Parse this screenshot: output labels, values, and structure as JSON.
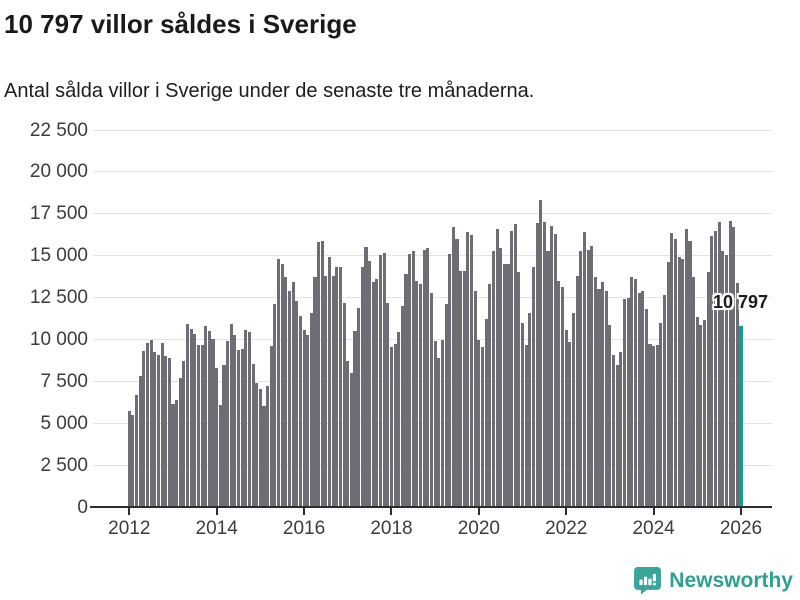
{
  "header": {
    "title": "10 797 villor såldes i Sverige",
    "subtitle": "Antal sålda villor i Sverige under de senaste tre månaderna."
  },
  "annotation": {
    "last_value_label": "10 797"
  },
  "footer": {
    "brand": "Newsworthy"
  },
  "colors": {
    "bar": "#6d6d75",
    "highlight": "#169b8f",
    "grid": "#e3e3e3",
    "axis": "#2e2e2e",
    "tick_text": "#3c3c3c",
    "logo_bg": "#38a79b",
    "brand_text": "#2d9f94"
  },
  "chart_data": {
    "type": "bar",
    "title": "10 797 villor såldes i Sverige",
    "subtitle": "Antal sålda villor i Sverige under de senaste tre månaderna.",
    "x_start": "2012-01",
    "x_freq": "monthly",
    "ylim": [
      0,
      22500
    ],
    "grid": true,
    "legend": "none",
    "yticks": [
      {
        "value": 0,
        "label": "0"
      },
      {
        "value": 2500,
        "label": "2 500"
      },
      {
        "value": 5000,
        "label": "5 000"
      },
      {
        "value": 7500,
        "label": "7 500"
      },
      {
        "value": 10000,
        "label": "10 000"
      },
      {
        "value": 12500,
        "label": "12 500"
      },
      {
        "value": 15000,
        "label": "15 000"
      },
      {
        "value": 17500,
        "label": "17 500"
      },
      {
        "value": 20000,
        "label": "20 000"
      },
      {
        "value": 22500,
        "label": "22 500"
      }
    ],
    "xticks": [
      {
        "label": "2012",
        "month_index": 0
      },
      {
        "label": "2014",
        "month_index": 24
      },
      {
        "label": "2016",
        "month_index": 48
      },
      {
        "label": "2018",
        "month_index": 72
      },
      {
        "label": "2020",
        "month_index": 96
      },
      {
        "label": "2022",
        "month_index": 120
      },
      {
        "label": "2024",
        "month_index": 144
      },
      {
        "label": "2026",
        "month_index": 168
      }
    ],
    "highlight_index": 168,
    "highlight_label": "10 797",
    "highlight_value": 10797,
    "values": [
      5700,
      5500,
      6700,
      7800,
      9300,
      9800,
      9950,
      9250,
      9100,
      9800,
      9000,
      8900,
      6150,
      6400,
      7700,
      8700,
      10900,
      10600,
      10300,
      9650,
      9650,
      10800,
      10500,
      10050,
      8300,
      6100,
      8500,
      9900,
      10950,
      10250,
      9350,
      9450,
      10550,
      10450,
      8550,
      7400,
      7050,
      6000,
      7200,
      9600,
      12100,
      14800,
      14500,
      13700,
      12900,
      13400,
      12300,
      11400,
      10550,
      10250,
      11600,
      13700,
      15800,
      15900,
      13800,
      14900,
      13800,
      14300,
      14350,
      12200,
      8700,
      8000,
      10500,
      11900,
      14300,
      15500,
      14700,
      13400,
      13600,
      15050,
      15150,
      12200,
      9550,
      9750,
      10450,
      12000,
      13900,
      15100,
      15300,
      13500,
      13300,
      15350,
      15450,
      12800,
      9900,
      8900,
      9950,
      12100,
      15100,
      16700,
      16000,
      14100,
      14100,
      16400,
      16250,
      12900,
      9950,
      9550,
      11200,
      13300,
      15250,
      16600,
      15450,
      14500,
      14500,
      16500,
      16900,
      14000,
      11000,
      9650,
      11600,
      14300,
      16950,
      18350,
      17000,
      15300,
      16750,
      16300,
      13500,
      13150,
      10550,
      9850,
      11600,
      13800,
      15250,
      16400,
      15350,
      15550,
      13700,
      13000,
      13400,
      12900,
      10850,
      9050,
      8500,
      9250,
      12400,
      12450,
      13700,
      13600,
      12800,
      12900,
      11800,
      9700,
      9600,
      9650,
      11000,
      12650,
      14600,
      16350,
      16000,
      14900,
      14800,
      16600,
      15850,
      13700,
      11350,
      10850,
      11150,
      14000,
      16150,
      16500,
      17000,
      15250,
      15050,
      17050,
      16700,
      13350,
      10797
    ]
  }
}
